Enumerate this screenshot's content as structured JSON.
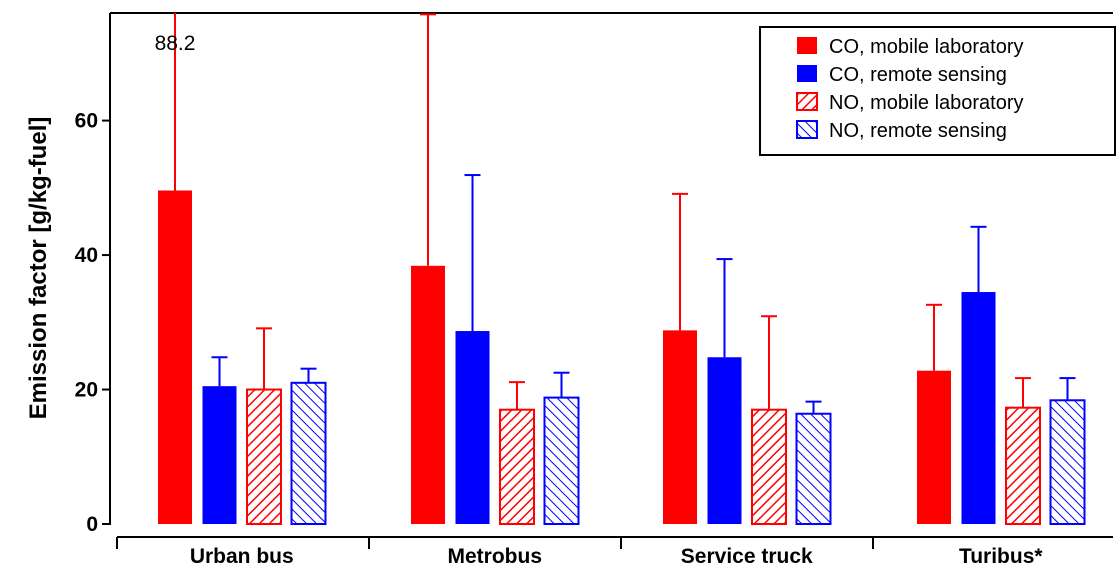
{
  "chart_data": {
    "type": "bar",
    "title": "",
    "xlabel": "",
    "ylabel": "Emission factor [g/kg-fuel]",
    "ylim": [
      0,
      76
    ],
    "yticks": [
      0,
      20,
      40,
      60
    ],
    "grid": false,
    "legend_position": "top-right",
    "categories": [
      "Urban bus",
      "Metrobus",
      "Service truck",
      "Turibus*"
    ],
    "series": [
      {
        "name": "CO, mobile laboratory",
        "color": "#ff0000",
        "fill": "solid",
        "values": [
          49.6,
          38.4,
          28.8,
          22.8
        ],
        "error_upper": [
          88.2,
          75.8,
          49.1,
          32.6
        ]
      },
      {
        "name": "CO, remote sensing",
        "color": "#0000ff",
        "fill": "solid",
        "values": [
          20.5,
          28.7,
          24.8,
          34.5
        ],
        "error_upper": [
          24.8,
          51.9,
          39.4,
          44.2
        ]
      },
      {
        "name": "NO, mobile laboratory",
        "color": "#ff0000",
        "fill": "hatch-forward",
        "values": [
          20.0,
          17.0,
          17.0,
          17.3
        ],
        "error_upper": [
          29.1,
          21.1,
          30.9,
          21.7
        ]
      },
      {
        "name": "NO, remote sensing",
        "color": "#0000ff",
        "fill": "hatch-backward",
        "values": [
          21.0,
          18.8,
          16.4,
          18.4
        ],
        "error_upper": [
          23.1,
          22.5,
          18.2,
          21.7
        ]
      }
    ],
    "annotations": [
      {
        "text": "88.2",
        "category": "Urban bus",
        "series": "CO, mobile laboratory"
      }
    ]
  }
}
